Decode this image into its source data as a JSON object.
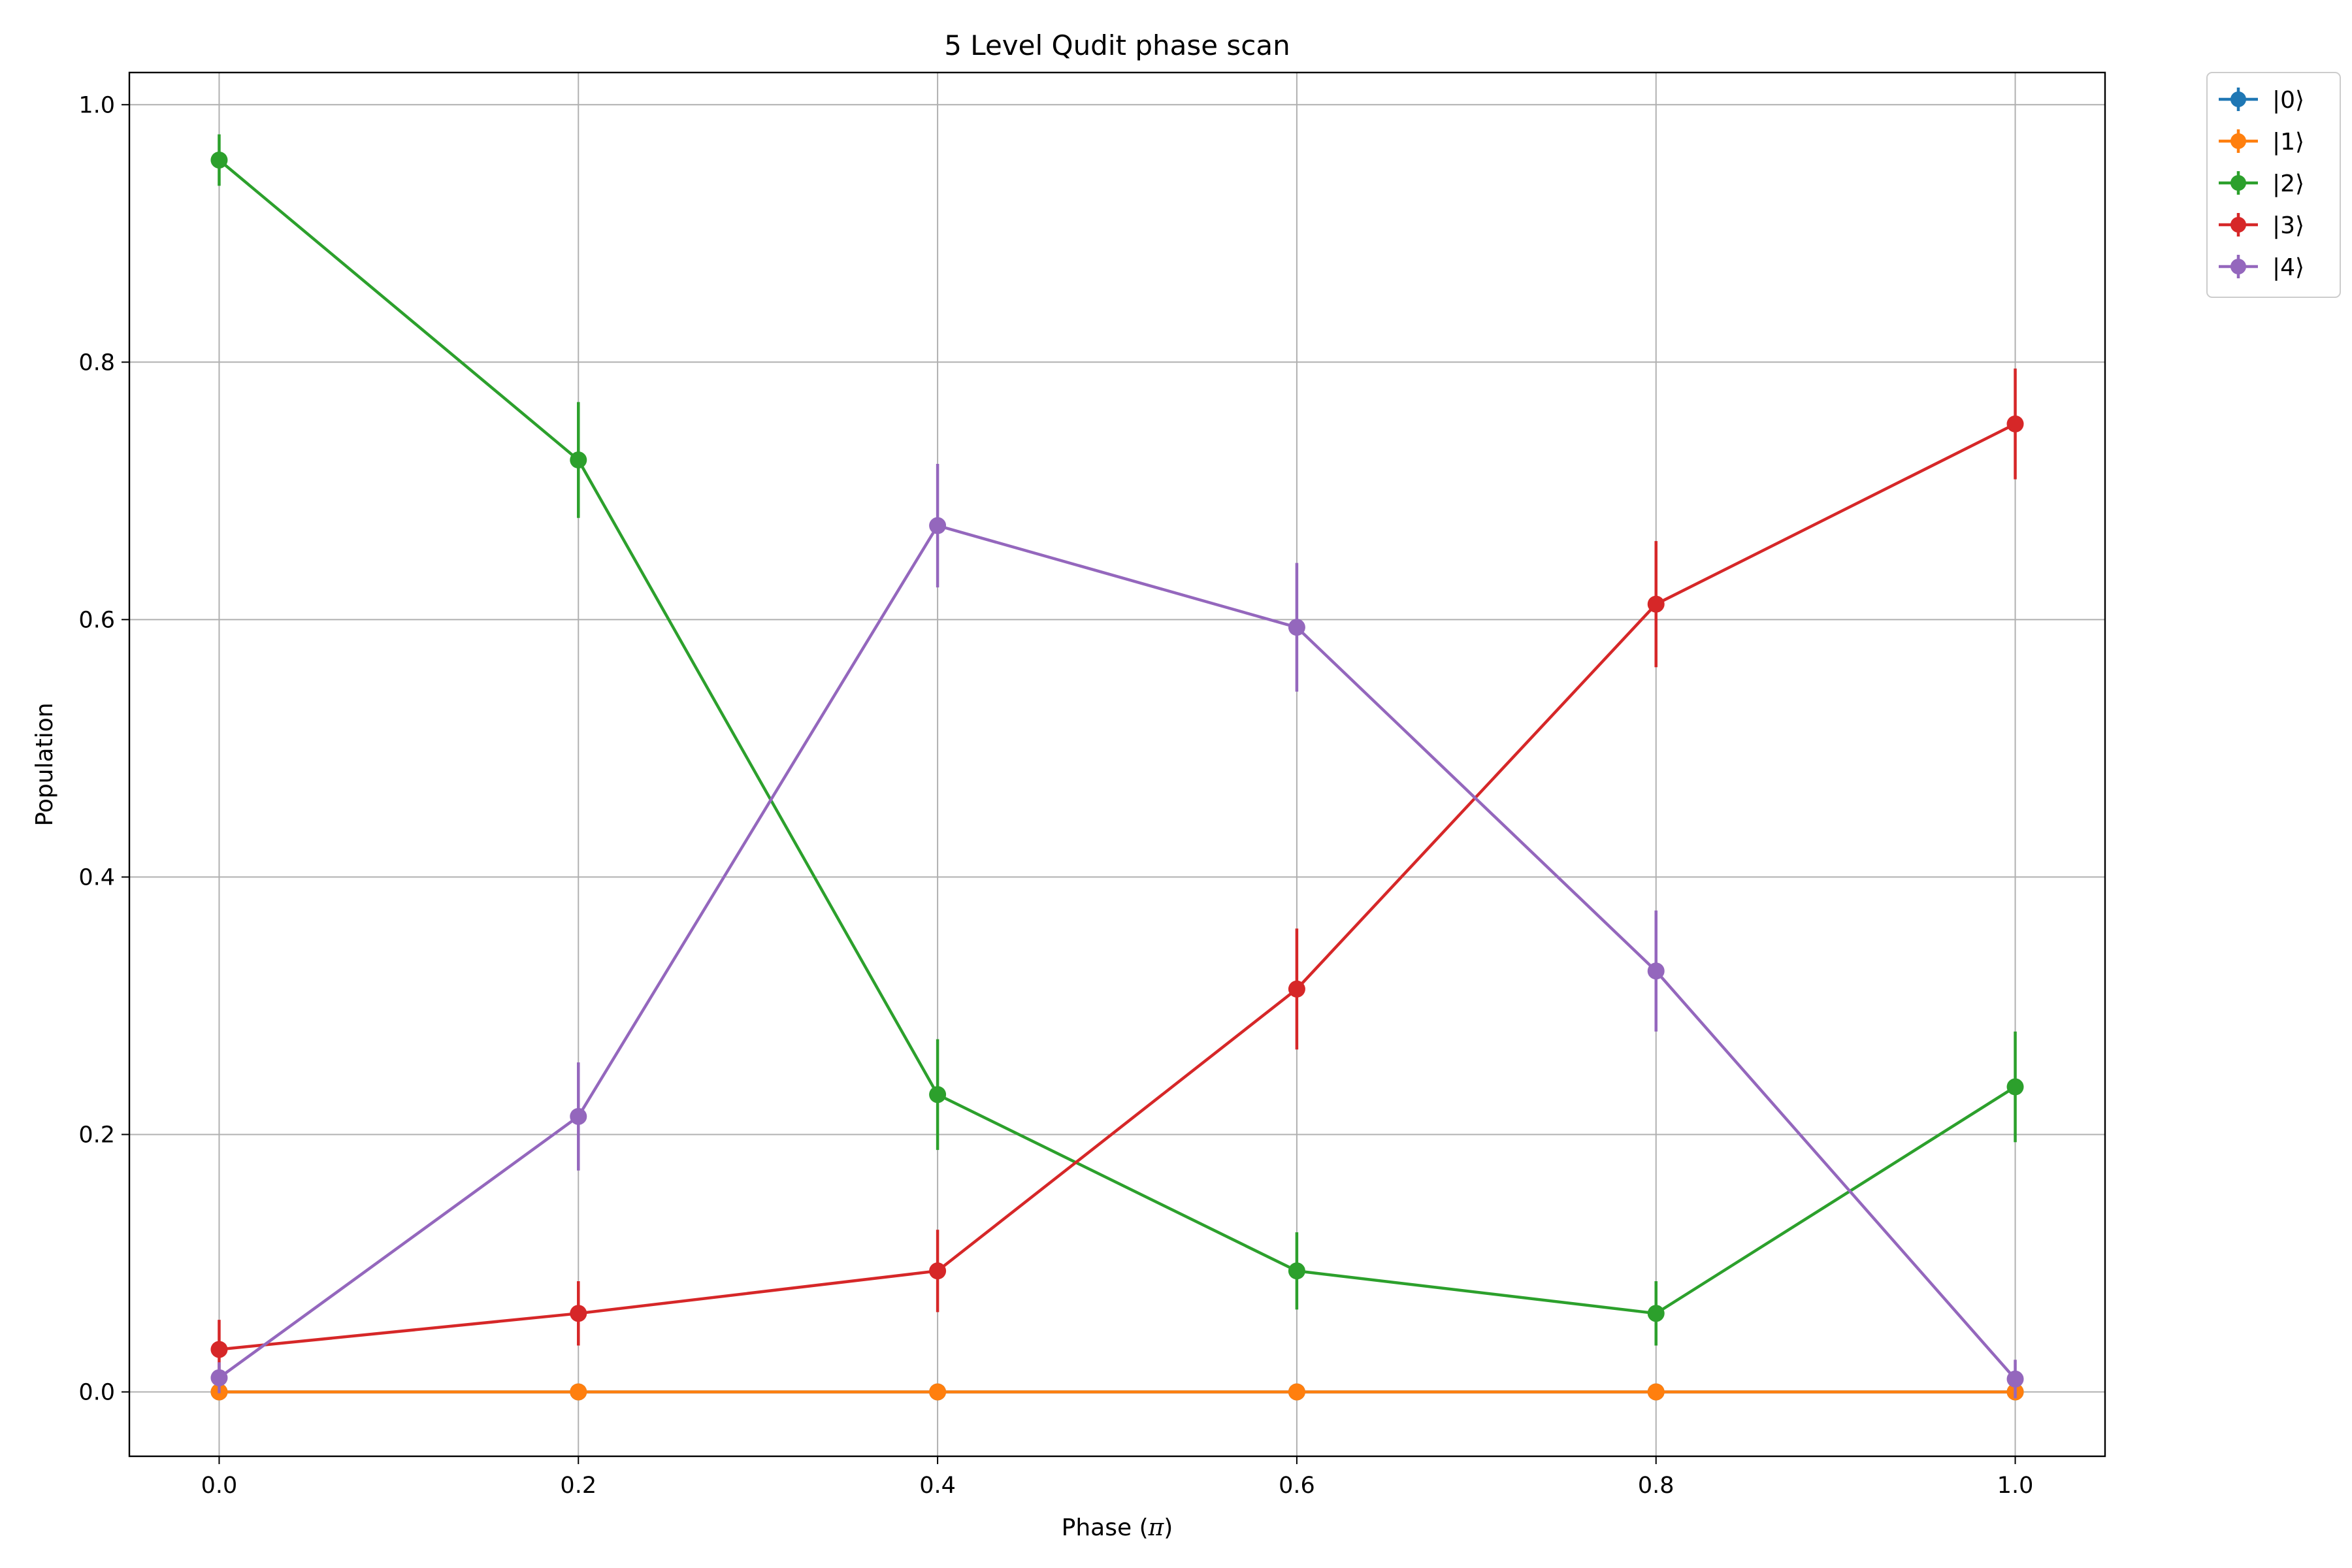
{
  "chart_data": {
    "type": "line",
    "title": "5 Level Qudit phase scan",
    "xlabel_prefix": "Phase (",
    "xlabel_symbol": "π",
    "xlabel_suffix": ")",
    "ylabel": "Population",
    "xlim": [
      -0.05,
      1.05
    ],
    "ylim": [
      -0.05,
      1.025
    ],
    "x_ticks": [
      0.0,
      0.2,
      0.4,
      0.6,
      0.8,
      1.0
    ],
    "x_tick_labels": [
      "0.0",
      "0.2",
      "0.4",
      "0.6",
      "0.8",
      "1.0"
    ],
    "y_ticks": [
      0.0,
      0.2,
      0.4,
      0.6,
      0.8,
      1.0
    ],
    "y_tick_labels": [
      "0.0",
      "0.2",
      "0.4",
      "0.6",
      "0.8",
      "1.0"
    ],
    "grid": true,
    "legend_position": "outside-top-right",
    "x": [
      0.0,
      0.2,
      0.4,
      0.6,
      0.8,
      1.0
    ],
    "series": [
      {
        "name": "|0⟩",
        "color": "#1f77b4",
        "values": [
          0,
          0,
          0,
          0,
          0,
          0
        ],
        "err": [
          0,
          0,
          0,
          0,
          0,
          0
        ]
      },
      {
        "name": "|1⟩",
        "color": "#ff7f0e",
        "values": [
          0,
          0,
          0,
          0,
          0,
          0
        ],
        "err": [
          0,
          0,
          0,
          0,
          0,
          0
        ]
      },
      {
        "name": "|2⟩",
        "color": "#2ca02c",
        "values": [
          0.957,
          0.724,
          0.231,
          0.094,
          0.061,
          0.237
        ],
        "err": [
          0.02,
          0.045,
          0.043,
          0.03,
          0.025,
          0.043
        ]
      },
      {
        "name": "|3⟩",
        "color": "#d62728",
        "values": [
          0.033,
          0.061,
          0.094,
          0.313,
          0.612,
          0.752
        ],
        "err": [
          0.023,
          0.025,
          0.032,
          0.047,
          0.049,
          0.043
        ]
      },
      {
        "name": "|4⟩",
        "color": "#9467bd",
        "values": [
          0.011,
          0.214,
          0.673,
          0.594,
          0.327,
          0.01
        ],
        "err": [
          0.012,
          0.042,
          0.048,
          0.05,
          0.047,
          0.015
        ]
      }
    ]
  }
}
